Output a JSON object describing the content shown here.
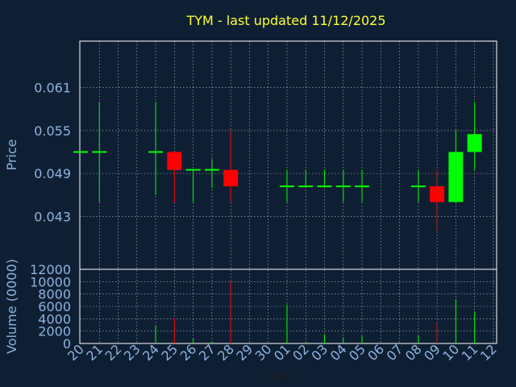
{
  "chart_data": {
    "type": "candlestick",
    "title": "TYM - last updated 11/12/2025",
    "xlabel": "Day",
    "price_panel": {
      "ylabel": "Price",
      "ylim": [
        0.0356,
        0.0675
      ],
      "yticks": [
        0.043,
        0.049,
        0.055,
        0.061
      ],
      "ytick_labels": [
        "0.043",
        "0.049",
        "0.055",
        "0.061"
      ],
      "grid": true
    },
    "volume_panel": {
      "ylabel": "Volume (0000)",
      "ylim": [
        0,
        12000
      ],
      "yticks": [
        0,
        2000,
        4000,
        6000,
        8000,
        10000,
        12000
      ],
      "ytick_labels": [
        "0",
        "2000",
        "4000",
        "6000",
        "8000",
        "10000",
        "12000"
      ],
      "grid": true
    },
    "x_tick_labels": [
      "20",
      "21",
      "22",
      "23",
      "24",
      "25",
      "26",
      "27",
      "28",
      "29",
      "30",
      "01",
      "02",
      "03",
      "04",
      "05",
      "06",
      "07",
      "08",
      "09",
      "10",
      "11",
      "12"
    ],
    "candles": [
      {
        "day": "20",
        "open": 0.052,
        "high": 0.052,
        "low": 0.052,
        "close": 0.052,
        "volume": 0
      },
      {
        "day": "21",
        "open": 0.052,
        "high": 0.059,
        "low": 0.045,
        "close": 0.052,
        "volume": 0
      },
      {
        "day": "24",
        "open": 0.052,
        "high": 0.059,
        "low": 0.046,
        "close": 0.052,
        "volume": 2800
      },
      {
        "day": "25",
        "open": 0.052,
        "high": 0.052,
        "low": 0.045,
        "close": 0.0495,
        "volume": 4100
      },
      {
        "day": "26",
        "open": 0.0495,
        "high": 0.0495,
        "low": 0.045,
        "close": 0.0495,
        "volume": 800
      },
      {
        "day": "27",
        "open": 0.0495,
        "high": 0.051,
        "low": 0.047,
        "close": 0.0495,
        "volume": 300
      },
      {
        "day": "28",
        "open": 0.0495,
        "high": 0.055,
        "low": 0.045,
        "close": 0.0472,
        "volume": 10000
      },
      {
        "day": "01",
        "open": 0.0472,
        "high": 0.0495,
        "low": 0.045,
        "close": 0.0472,
        "volume": 6300
      },
      {
        "day": "02",
        "open": 0.0472,
        "high": 0.0495,
        "low": 0.047,
        "close": 0.0472,
        "volume": 200
      },
      {
        "day": "03",
        "open": 0.0472,
        "high": 0.0495,
        "low": 0.047,
        "close": 0.0472,
        "volume": 1500
      },
      {
        "day": "04",
        "open": 0.0472,
        "high": 0.0495,
        "low": 0.045,
        "close": 0.0472,
        "volume": 1000
      },
      {
        "day": "05",
        "open": 0.0472,
        "high": 0.0495,
        "low": 0.045,
        "close": 0.0472,
        "volume": 1200
      },
      {
        "day": "08",
        "open": 0.0472,
        "high": 0.0495,
        "low": 0.045,
        "close": 0.0472,
        "volume": 1300
      },
      {
        "day": "09",
        "open": 0.0472,
        "high": 0.0495,
        "low": 0.041,
        "close": 0.045,
        "volume": 3400
      },
      {
        "day": "10",
        "open": 0.045,
        "high": 0.055,
        "low": 0.045,
        "close": 0.052,
        "volume": 7200
      },
      {
        "day": "11",
        "open": 0.052,
        "high": 0.059,
        "low": 0.0495,
        "close": 0.0545,
        "volume": 5200
      }
    ],
    "colors": {
      "up": "#00ff00",
      "down": "#ff0000",
      "background": "#0f1f33",
      "grid": "#ffffff",
      "axis_text": "#8fb3de",
      "title": "#ffff33"
    }
  }
}
